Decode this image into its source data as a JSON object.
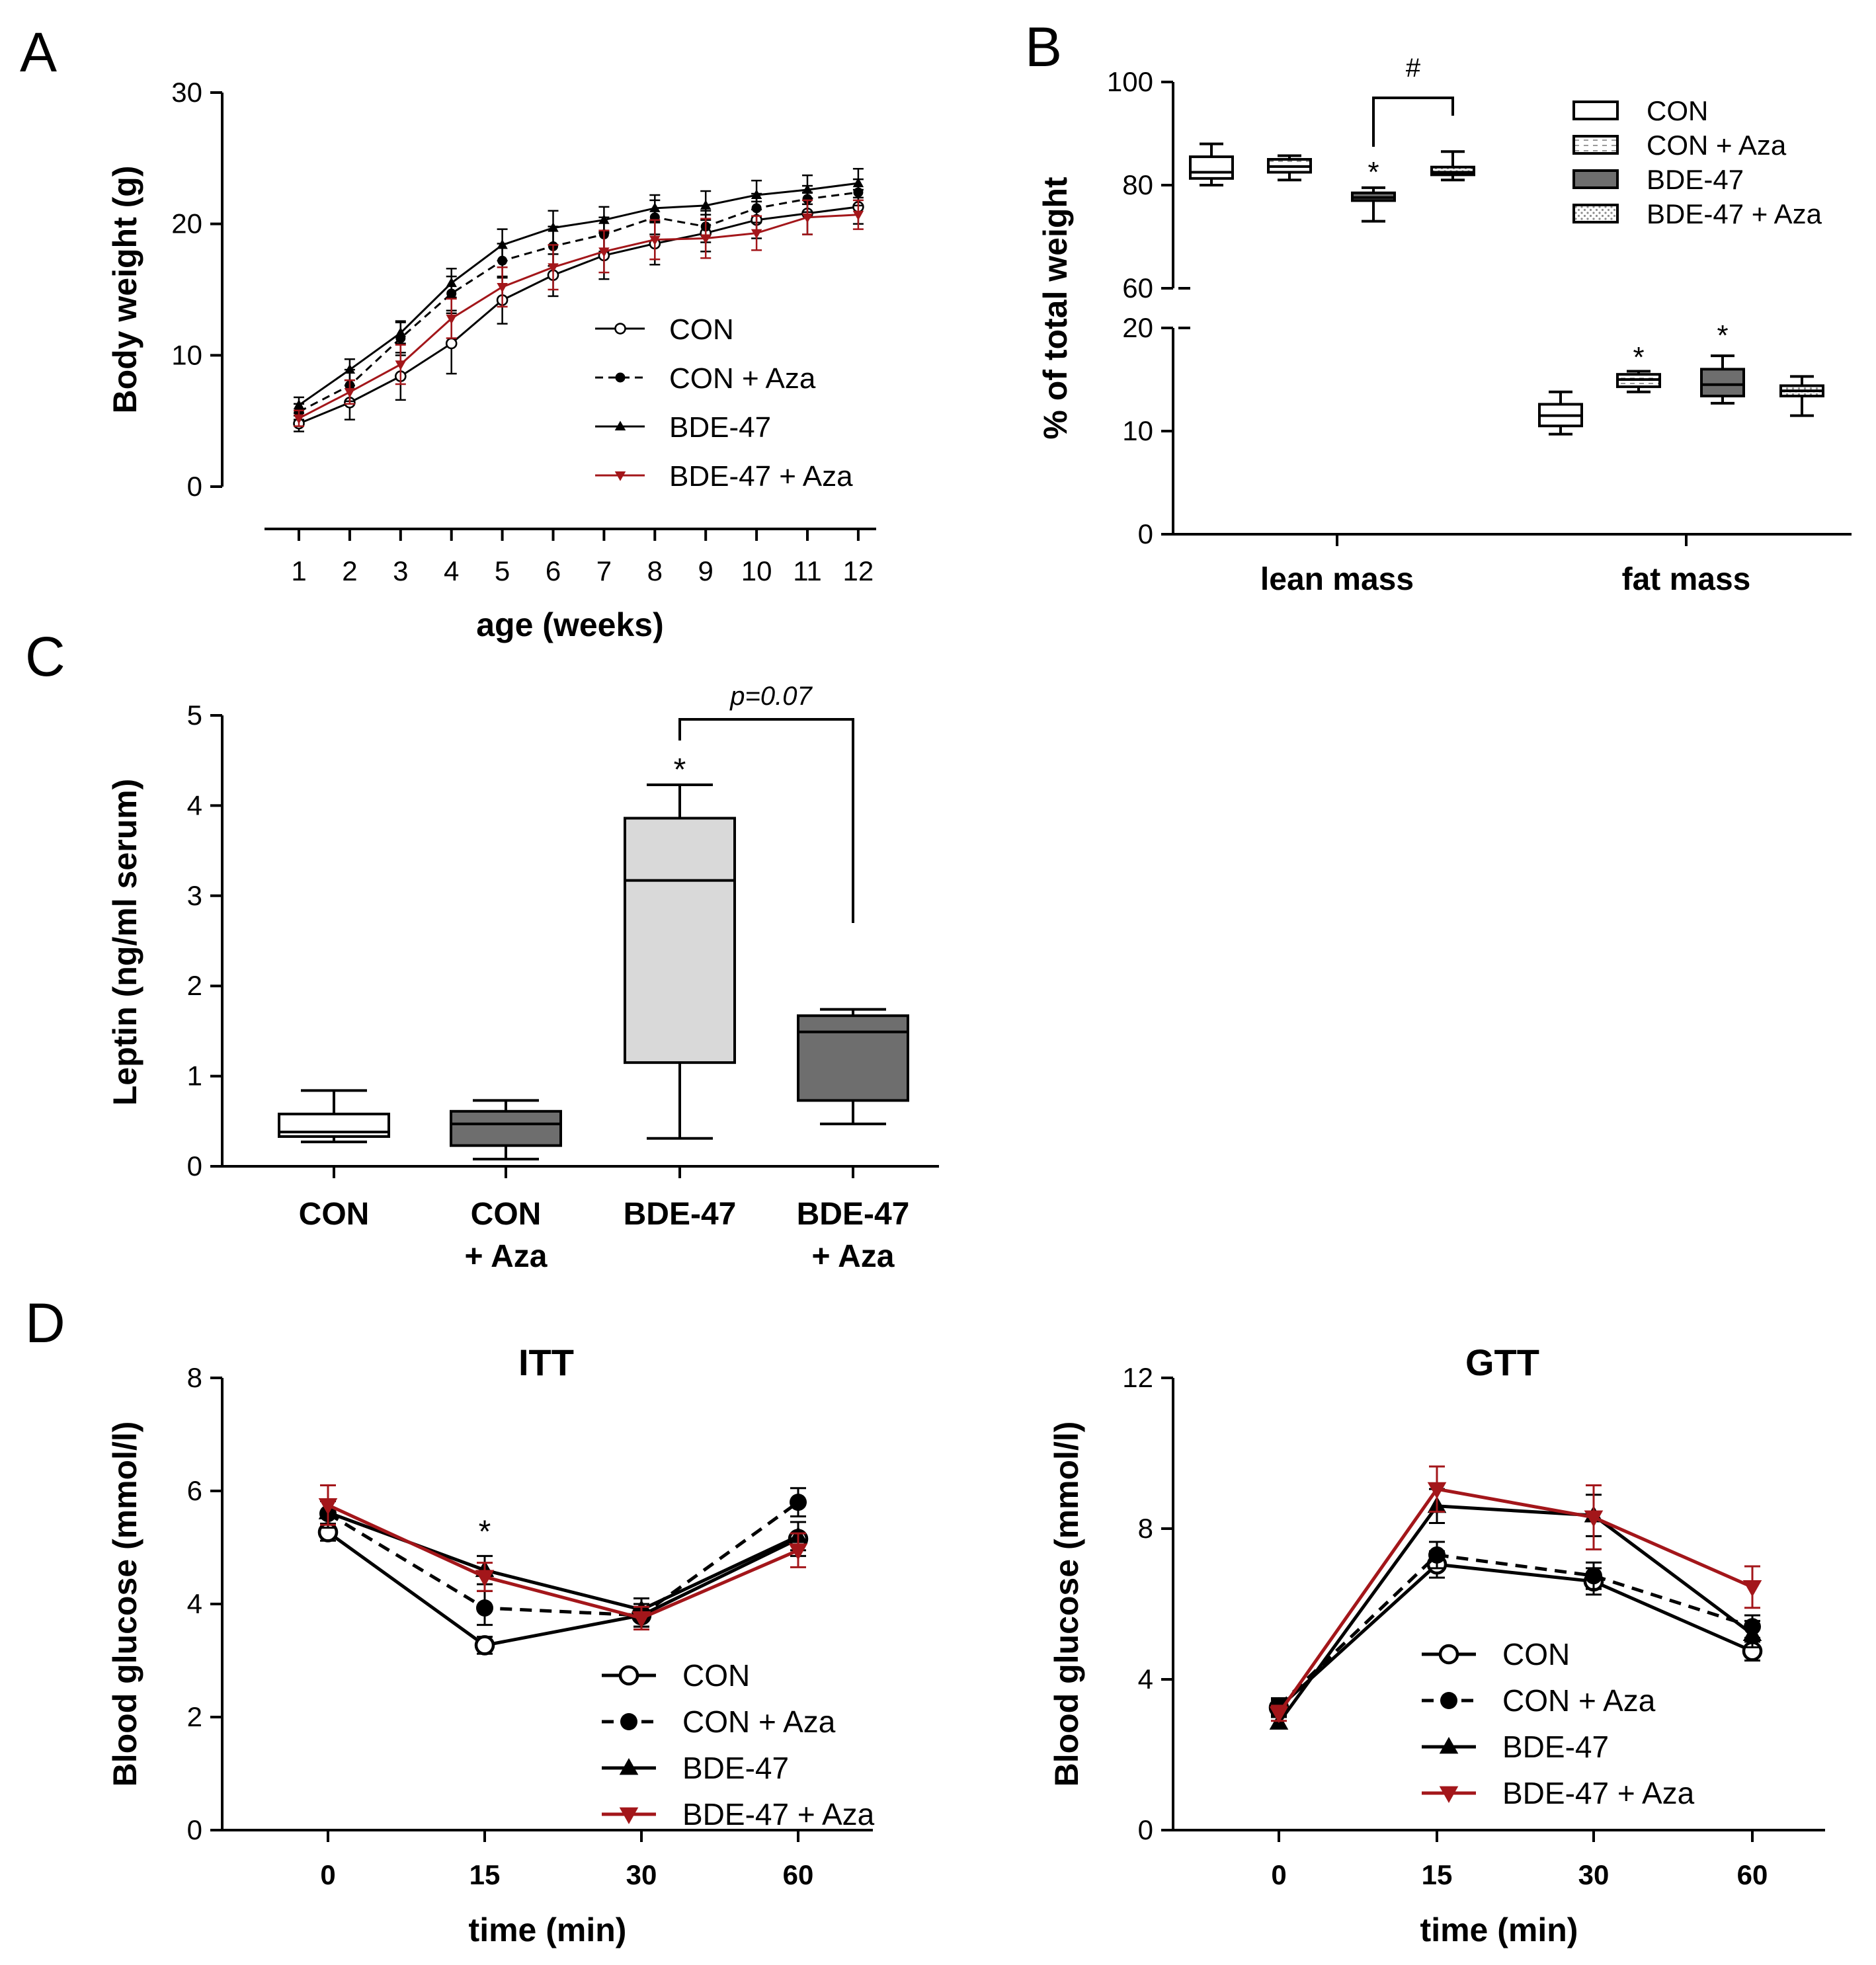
{
  "colors": {
    "black": "#000000",
    "red": "#a3161a",
    "white_fill": "#ffffff",
    "dark_fill": "#6e6e6e",
    "light_fill": "#d9d9d9"
  },
  "panels": {
    "A": {
      "letter": "A"
    },
    "B": {
      "letter": "B"
    },
    "C": {
      "letter": "C"
    },
    "D": {
      "letter": "D"
    }
  },
  "chart_data": [
    {
      "id": "A",
      "type": "line",
      "title": "",
      "xlabel": "age (weeks)",
      "ylabel": "Body weight (g)",
      "x": [
        1,
        2,
        3,
        4,
        5,
        6,
        7,
        8,
        9,
        10,
        11,
        12
      ],
      "ylim": [
        0,
        30
      ],
      "yticks": [
        "0",
        "10",
        "20",
        "30"
      ],
      "xticks": [
        "1",
        "2",
        "3",
        "4",
        "5",
        "6",
        "7",
        "8",
        "9",
        "10",
        "11",
        "12"
      ],
      "series": [
        {
          "name": "CON",
          "marker": "open-circle",
          "style": "solid",
          "color": "#000000",
          "values": [
            4.8,
            6.4,
            8.4,
            10.9,
            14.2,
            16.1,
            17.6,
            18.5,
            19.3,
            20.3,
            20.8,
            21.3
          ],
          "err": [
            0.6,
            1.3,
            1.8,
            2.3,
            1.8,
            1.6,
            1.8,
            1.6,
            1.4,
            1.4,
            1.6,
            1.3
          ]
        },
        {
          "name": "CON + Aza",
          "marker": "filled-circle",
          "style": "dashed",
          "color": "#000000",
          "values": [
            5.7,
            7.7,
            11.3,
            14.7,
            17.2,
            18.3,
            19.2,
            20.5,
            19.8,
            21.2,
            21.9,
            22.4
          ],
          "err": [
            0.6,
            1.2,
            1.3,
            1.3,
            1.3,
            1.5,
            1.3,
            1.3,
            1.2,
            1.1,
            1.0,
            1.0
          ]
        },
        {
          "name": "BDE-47",
          "marker": "filled-triangle",
          "style": "solid",
          "color": "#000000",
          "values": [
            6.2,
            8.9,
            11.7,
            15.5,
            18.4,
            19.7,
            20.3,
            21.2,
            21.4,
            22.2,
            22.6,
            23.1
          ],
          "err": [
            0.6,
            0.8,
            0.8,
            1.1,
            1.2,
            1.3,
            1.0,
            1.0,
            1.1,
            1.1,
            1.1,
            1.1
          ]
        },
        {
          "name": "BDE-47 + Aza",
          "marker": "filled-triangle-down",
          "style": "solid",
          "color": "#a3161a",
          "values": [
            5.2,
            7.2,
            9.3,
            12.8,
            15.2,
            16.7,
            17.9,
            18.8,
            18.9,
            19.3,
            20.5,
            20.7
          ],
          "err": [
            0.6,
            0.9,
            1.5,
            1.5,
            1.5,
            1.7,
            1.6,
            1.5,
            1.5,
            1.3,
            1.3,
            1.1
          ]
        }
      ]
    },
    {
      "id": "B",
      "type": "box",
      "title": "",
      "xlabel": "",
      "ylabel": "% of total weight",
      "categories": [
        "lean mass",
        "fat mass"
      ],
      "ylim_upper": [
        60,
        100
      ],
      "ylim_lower": [
        0,
        20
      ],
      "yticks": [
        "0",
        "10",
        "20",
        "60",
        "80",
        "100"
      ],
      "series": [
        {
          "name": "CON",
          "fill": "white",
          "boxes": [
            {
              "min": 80,
              "q1": 81.3,
              "median": 82.5,
              "q3": 85.5,
              "max": 88
            },
            {
              "min": 9.7,
              "q1": 10.5,
              "median": 11.5,
              "q3": 12.6,
              "max": 13.8
            }
          ]
        },
        {
          "name": "CON + Aza",
          "fill": "white-dashed",
          "boxes": [
            {
              "min": 81,
              "q1": 82.5,
              "median": 83.6,
              "q3": 85,
              "max": 85.7
            },
            {
              "min": 13.8,
              "q1": 14.3,
              "median": 15,
              "q3": 15.5,
              "max": 15.8
            }
          ]
        },
        {
          "name": "BDE-47",
          "fill": "dark",
          "boxes": [
            {
              "min": 73,
              "q1": 77,
              "median": 77.6,
              "q3": 78.5,
              "max": 79.5
            },
            {
              "min": 12.7,
              "q1": 13.4,
              "median": 14.5,
              "q3": 16,
              "max": 17.3
            }
          ]
        },
        {
          "name": "BDE-47 + Aza",
          "fill": "dotted",
          "boxes": [
            {
              "min": 81,
              "q1": 82,
              "median": 82.5,
              "q3": 83.5,
              "max": 86.5
            },
            {
              "min": 11.5,
              "q1": 13.4,
              "median": 13.9,
              "q3": 14.4,
              "max": 15.3
            }
          ]
        }
      ],
      "annotations": {
        "bracket": "#",
        "star": "*"
      }
    },
    {
      "id": "C",
      "type": "box",
      "title": "",
      "xlabel": "",
      "ylabel": "Leptin (ng/ml serum)",
      "ylim": [
        0,
        5
      ],
      "yticks": [
        "0",
        "1",
        "2",
        "3",
        "4",
        "5"
      ],
      "categories": [
        {
          "line1": "CON",
          "line2": ""
        },
        {
          "line1": "CON",
          "line2": "+ Aza"
        },
        {
          "line1": "BDE-47",
          "line2": ""
        },
        {
          "line1": "BDE-47",
          "line2": "+ Aza"
        }
      ],
      "boxes": [
        {
          "min": 0.27,
          "q1": 0.33,
          "median": 0.38,
          "q3": 0.58,
          "max": 0.84,
          "fill": "white"
        },
        {
          "min": 0.08,
          "q1": 0.23,
          "median": 0.47,
          "q3": 0.61,
          "max": 0.73,
          "fill": "dark"
        },
        {
          "min": 0.31,
          "q1": 1.15,
          "median": 3.17,
          "q3": 3.86,
          "max": 4.23,
          "fill": "light"
        },
        {
          "min": 0.47,
          "q1": 0.73,
          "median": 1.49,
          "q3": 1.67,
          "max": 1.74,
          "fill": "dark"
        }
      ],
      "annotations": {
        "star": "*",
        "pvalue": "p=0.07"
      }
    },
    {
      "id": "D-ITT",
      "type": "line",
      "title": "ITT",
      "xlabel": "time (min)",
      "ylabel": "Blood glucose (mmol/l)",
      "x": [
        "0",
        "15",
        "30",
        "60"
      ],
      "ylim": [
        0,
        8
      ],
      "yticks": [
        "0",
        "2",
        "4",
        "6",
        "8"
      ],
      "series": [
        {
          "name": "CON",
          "marker": "open-circle",
          "style": "solid",
          "color": "#000000",
          "values": [
            5.27,
            3.27,
            3.8,
            5.15
          ],
          "err": [
            0.15,
            0.15,
            0.2,
            0.3
          ]
        },
        {
          "name": "CON + Aza",
          "marker": "filled-circle",
          "style": "dashed",
          "color": "#000000",
          "values": [
            5.6,
            3.93,
            3.8,
            5.8
          ],
          "err": [
            0.25,
            0.3,
            0.2,
            0.25
          ]
        },
        {
          "name": "BDE-47",
          "marker": "filled-triangle",
          "style": "solid",
          "color": "#000000",
          "values": [
            5.62,
            4.6,
            3.9,
            5.2
          ],
          "err": [
            0.2,
            0.25,
            0.2,
            0.25
          ]
        },
        {
          "name": "BDE-47 + Aza",
          "marker": "filled-triangle-down",
          "style": "solid",
          "color": "#a3161a",
          "values": [
            5.75,
            4.48,
            3.75,
            4.95
          ],
          "err": [
            0.35,
            0.25,
            0.2,
            0.3
          ]
        }
      ],
      "annotations": {
        "star": "*"
      }
    },
    {
      "id": "D-GTT",
      "type": "line",
      "title": "GTT",
      "xlabel": "time (min)",
      "ylabel": "Blood glucose (mmol/l)",
      "x": [
        "0",
        "15",
        "30",
        "60"
      ],
      "ylim": [
        0,
        12
      ],
      "yticks": [
        "0",
        "4",
        "8",
        "12"
      ],
      "series": [
        {
          "name": "CON",
          "marker": "open-circle",
          "style": "solid",
          "color": "#000000",
          "values": [
            3.25,
            7.05,
            6.6,
            4.75
          ],
          "err": [
            0.2,
            0.35,
            0.35,
            0.25
          ]
        },
        {
          "name": "CON + Aza",
          "marker": "filled-circle",
          "style": "dashed",
          "color": "#000000",
          "values": [
            3.3,
            7.3,
            6.75,
            5.4
          ],
          "err": [
            0.2,
            0.35,
            0.35,
            0.3
          ]
        },
        {
          "name": "BDE-47",
          "marker": "filled-triangle",
          "style": "solid",
          "color": "#000000",
          "values": [
            2.85,
            8.6,
            8.35,
            5.2
          ],
          "err": [
            0.15,
            0.45,
            0.55,
            0.35
          ]
        },
        {
          "name": "BDE-47 + Aza",
          "marker": "filled-triangle-down",
          "style": "solid",
          "color": "#a3161a",
          "values": [
            3.1,
            9.05,
            8.3,
            6.45
          ],
          "err": [
            0.2,
            0.6,
            0.85,
            0.55
          ]
        }
      ]
    }
  ]
}
